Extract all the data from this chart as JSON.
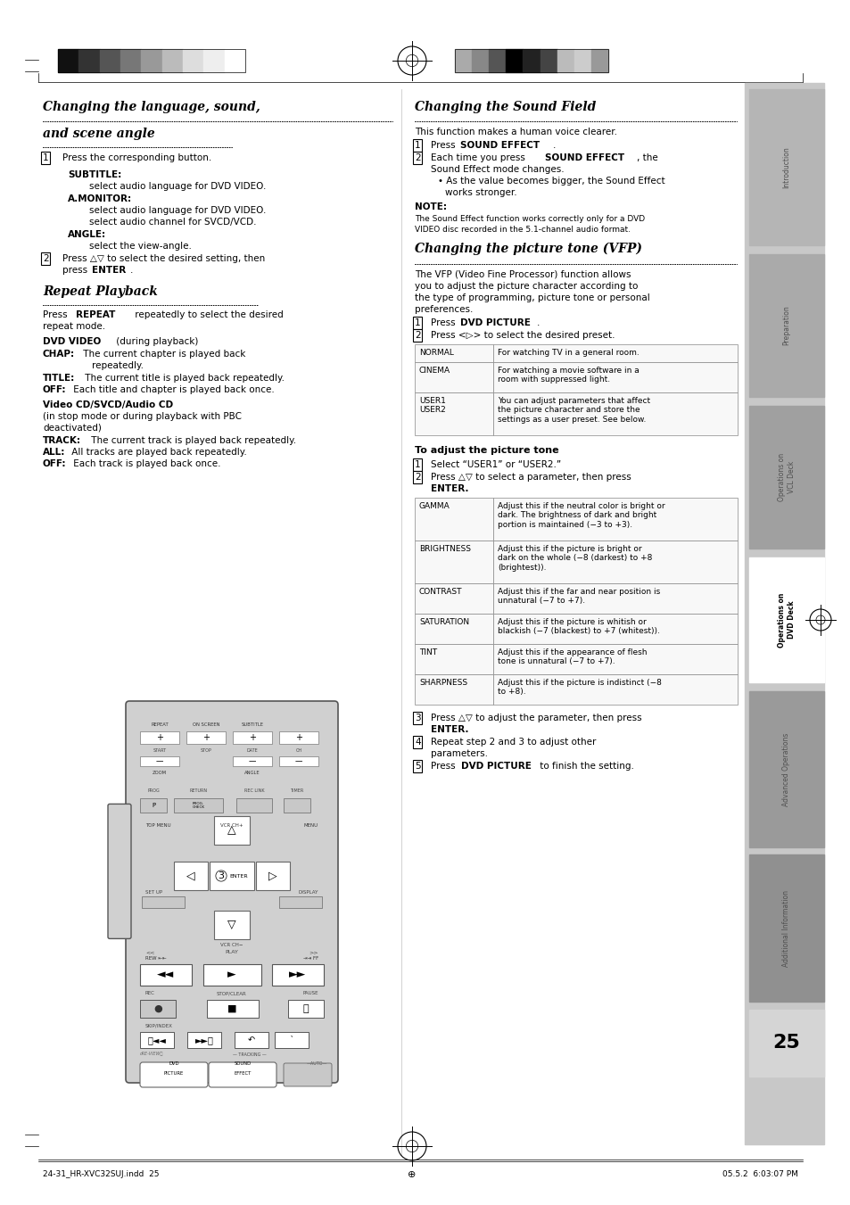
{
  "bg_color": "#ffffff",
  "cb_left_colors": [
    "#111111",
    "#333333",
    "#555555",
    "#777777",
    "#999999",
    "#bbbbbb",
    "#dddddd",
    "#eeeeee",
    "#ffffff"
  ],
  "cb_right_colors": [
    "#aaaaaa",
    "#888888",
    "#555555",
    "#000000",
    "#222222",
    "#444444",
    "#bbbbbb",
    "#cccccc",
    "#999999"
  ],
  "footer_left": "24-31_HR-XVC32SUJ.indd  25",
  "footer_right": "05.5.2  6:03:07 PM",
  "page_num": "25"
}
